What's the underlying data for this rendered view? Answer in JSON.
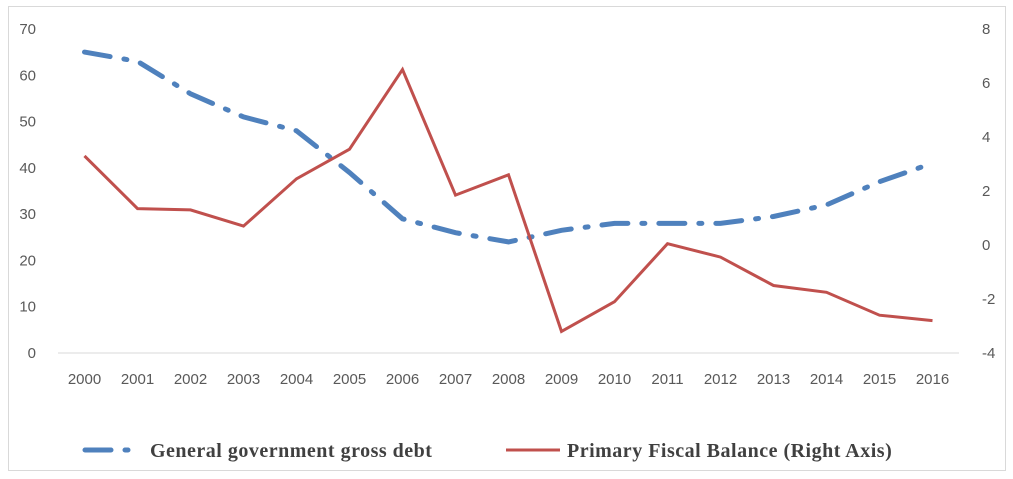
{
  "chart_data": {
    "type": "line",
    "x": [
      "2000",
      "2001",
      "2002",
      "2003",
      "2004",
      "2005",
      "2006",
      "2007",
      "2008",
      "2009",
      "2010",
      "2011",
      "2012",
      "2013",
      "2014",
      "2015",
      "2016"
    ],
    "y_left": {
      "ylim": [
        0,
        70
      ],
      "ticks": [
        0,
        10,
        20,
        30,
        40,
        50,
        60,
        70
      ]
    },
    "y_right": {
      "ylim": [
        -4,
        8
      ],
      "ticks": [
        -4,
        -2,
        0,
        2,
        4,
        6,
        8
      ]
    },
    "series": [
      {
        "name": "General government gross debt",
        "axis": "left",
        "style": "dash-dot",
        "color": "#4f81bd",
        "values": [
          65,
          63,
          56,
          51,
          48,
          39,
          29,
          26,
          24,
          26.5,
          28,
          28,
          28,
          29.5,
          32,
          37,
          41
        ]
      },
      {
        "name": "Primary Fiscal Balance (Right Axis)",
        "axis": "right",
        "style": "solid",
        "color": "#c0504d",
        "values": [
          3.3,
          1.35,
          1.3,
          0.7,
          2.45,
          3.55,
          6.5,
          1.85,
          2.6,
          -3.2,
          -2.1,
          0.05,
          -0.45,
          -1.5,
          -1.75,
          -2.6,
          -2.8
        ]
      }
    ],
    "legend_position": "bottom",
    "grid": false
  }
}
